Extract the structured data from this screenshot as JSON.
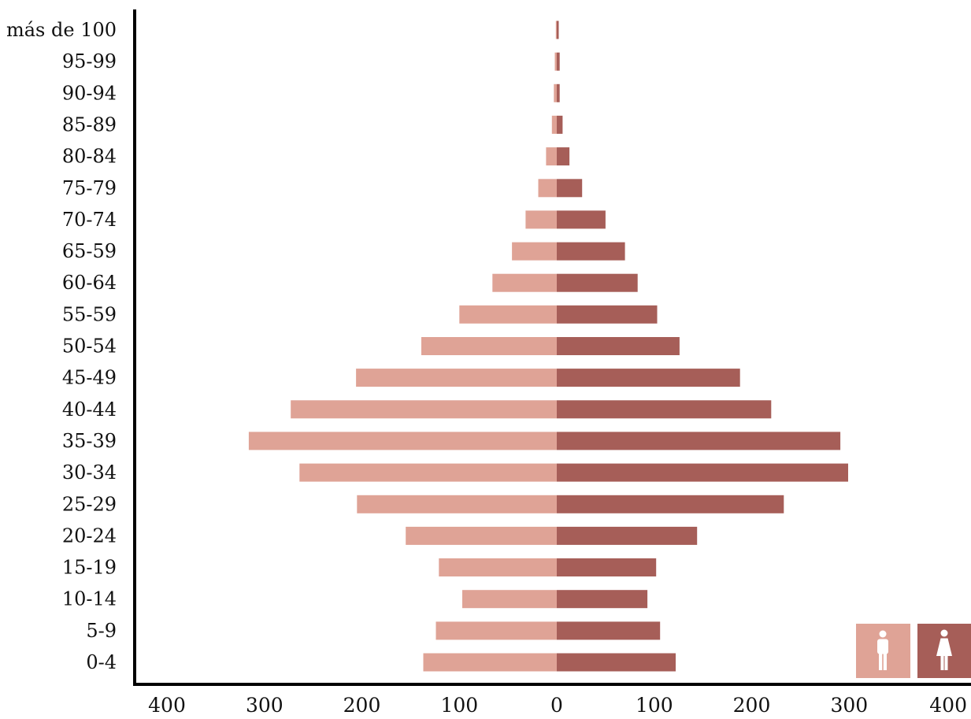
{
  "chart_data": {
    "type": "bar",
    "orientation": "horizontal",
    "layout": "population-pyramid",
    "categories": [
      "más de 100",
      "95-99",
      "90-94",
      "85-89",
      "80-84",
      "75-79",
      "70-74",
      "65-59",
      "60-64",
      "55-59",
      "50-54",
      "45-49",
      "40-44",
      "35-39",
      "30-34",
      "25-29",
      "20-24",
      "15-19",
      "10-14",
      "5-9",
      "0-4"
    ],
    "series": [
      {
        "side": "left",
        "icon": "male-icon",
        "color": "#dfa396",
        "values": [
          1,
          2,
          3,
          5,
          11,
          19,
          32,
          46,
          66,
          100,
          139,
          206,
          273,
          316,
          264,
          205,
          155,
          121,
          97,
          124,
          137
        ]
      },
      {
        "side": "right",
        "icon": "female-icon",
        "color": "#a65e58",
        "values": [
          2,
          3,
          3,
          6,
          13,
          26,
          50,
          70,
          83,
          103,
          126,
          188,
          220,
          291,
          299,
          233,
          144,
          102,
          93,
          106,
          122
        ]
      }
    ],
    "xlim": [
      -400,
      400
    ],
    "x_ticks": [
      "400",
      "300",
      "200",
      "100",
      "0",
      "100",
      "200",
      "300",
      "400"
    ],
    "grid": false,
    "legend": "bottom-right"
  }
}
